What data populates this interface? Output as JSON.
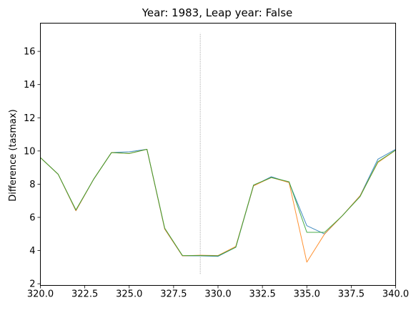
{
  "chart_data": {
    "type": "line",
    "title": "Year: 1983, Leap year: False",
    "xlabel": "",
    "ylabel": "Difference (tasmax)",
    "xlim": [
      320,
      340
    ],
    "ylim": [
      1.9,
      17.7
    ],
    "x_ticks": [
      "320.0",
      "322.5",
      "325.0",
      "327.5",
      "330.0",
      "332.5",
      "335.0",
      "337.5",
      "340.0"
    ],
    "y_ticks": [
      "2",
      "4",
      "6",
      "8",
      "10",
      "12",
      "14",
      "16"
    ],
    "grid": false,
    "legend": "none",
    "vline": {
      "x": 329,
      "ymin": 2.6,
      "ymax": 17.1,
      "color": "#808080"
    },
    "x": [
      320,
      321,
      322,
      323,
      324,
      325,
      326,
      327,
      328,
      329,
      330,
      331,
      332,
      333,
      334,
      335,
      336,
      337,
      338,
      339,
      340
    ],
    "series": [
      {
        "color": "#1f77b4",
        "values": [
          9.6,
          8.6,
          6.4,
          8.3,
          9.9,
          9.95,
          10.1,
          5.3,
          3.68,
          3.68,
          3.65,
          4.2,
          7.9,
          8.45,
          8.1,
          5.5,
          5.0,
          6.1,
          7.3,
          9.5,
          10.1
        ]
      },
      {
        "color": "#ff7f0e",
        "values": [
          9.6,
          8.6,
          6.4,
          8.3,
          9.9,
          9.85,
          10.1,
          5.3,
          3.68,
          3.72,
          3.7,
          4.25,
          7.9,
          8.4,
          8.1,
          3.3,
          5.0,
          6.1,
          7.3,
          9.3,
          10.05
        ]
      },
      {
        "color": "#2ca02c",
        "values": [
          9.6,
          8.6,
          6.45,
          8.3,
          9.9,
          9.85,
          10.1,
          5.35,
          3.7,
          3.7,
          3.68,
          4.2,
          7.95,
          8.4,
          8.15,
          5.1,
          5.1,
          6.1,
          7.25,
          9.35,
          10.05
        ]
      }
    ]
  }
}
